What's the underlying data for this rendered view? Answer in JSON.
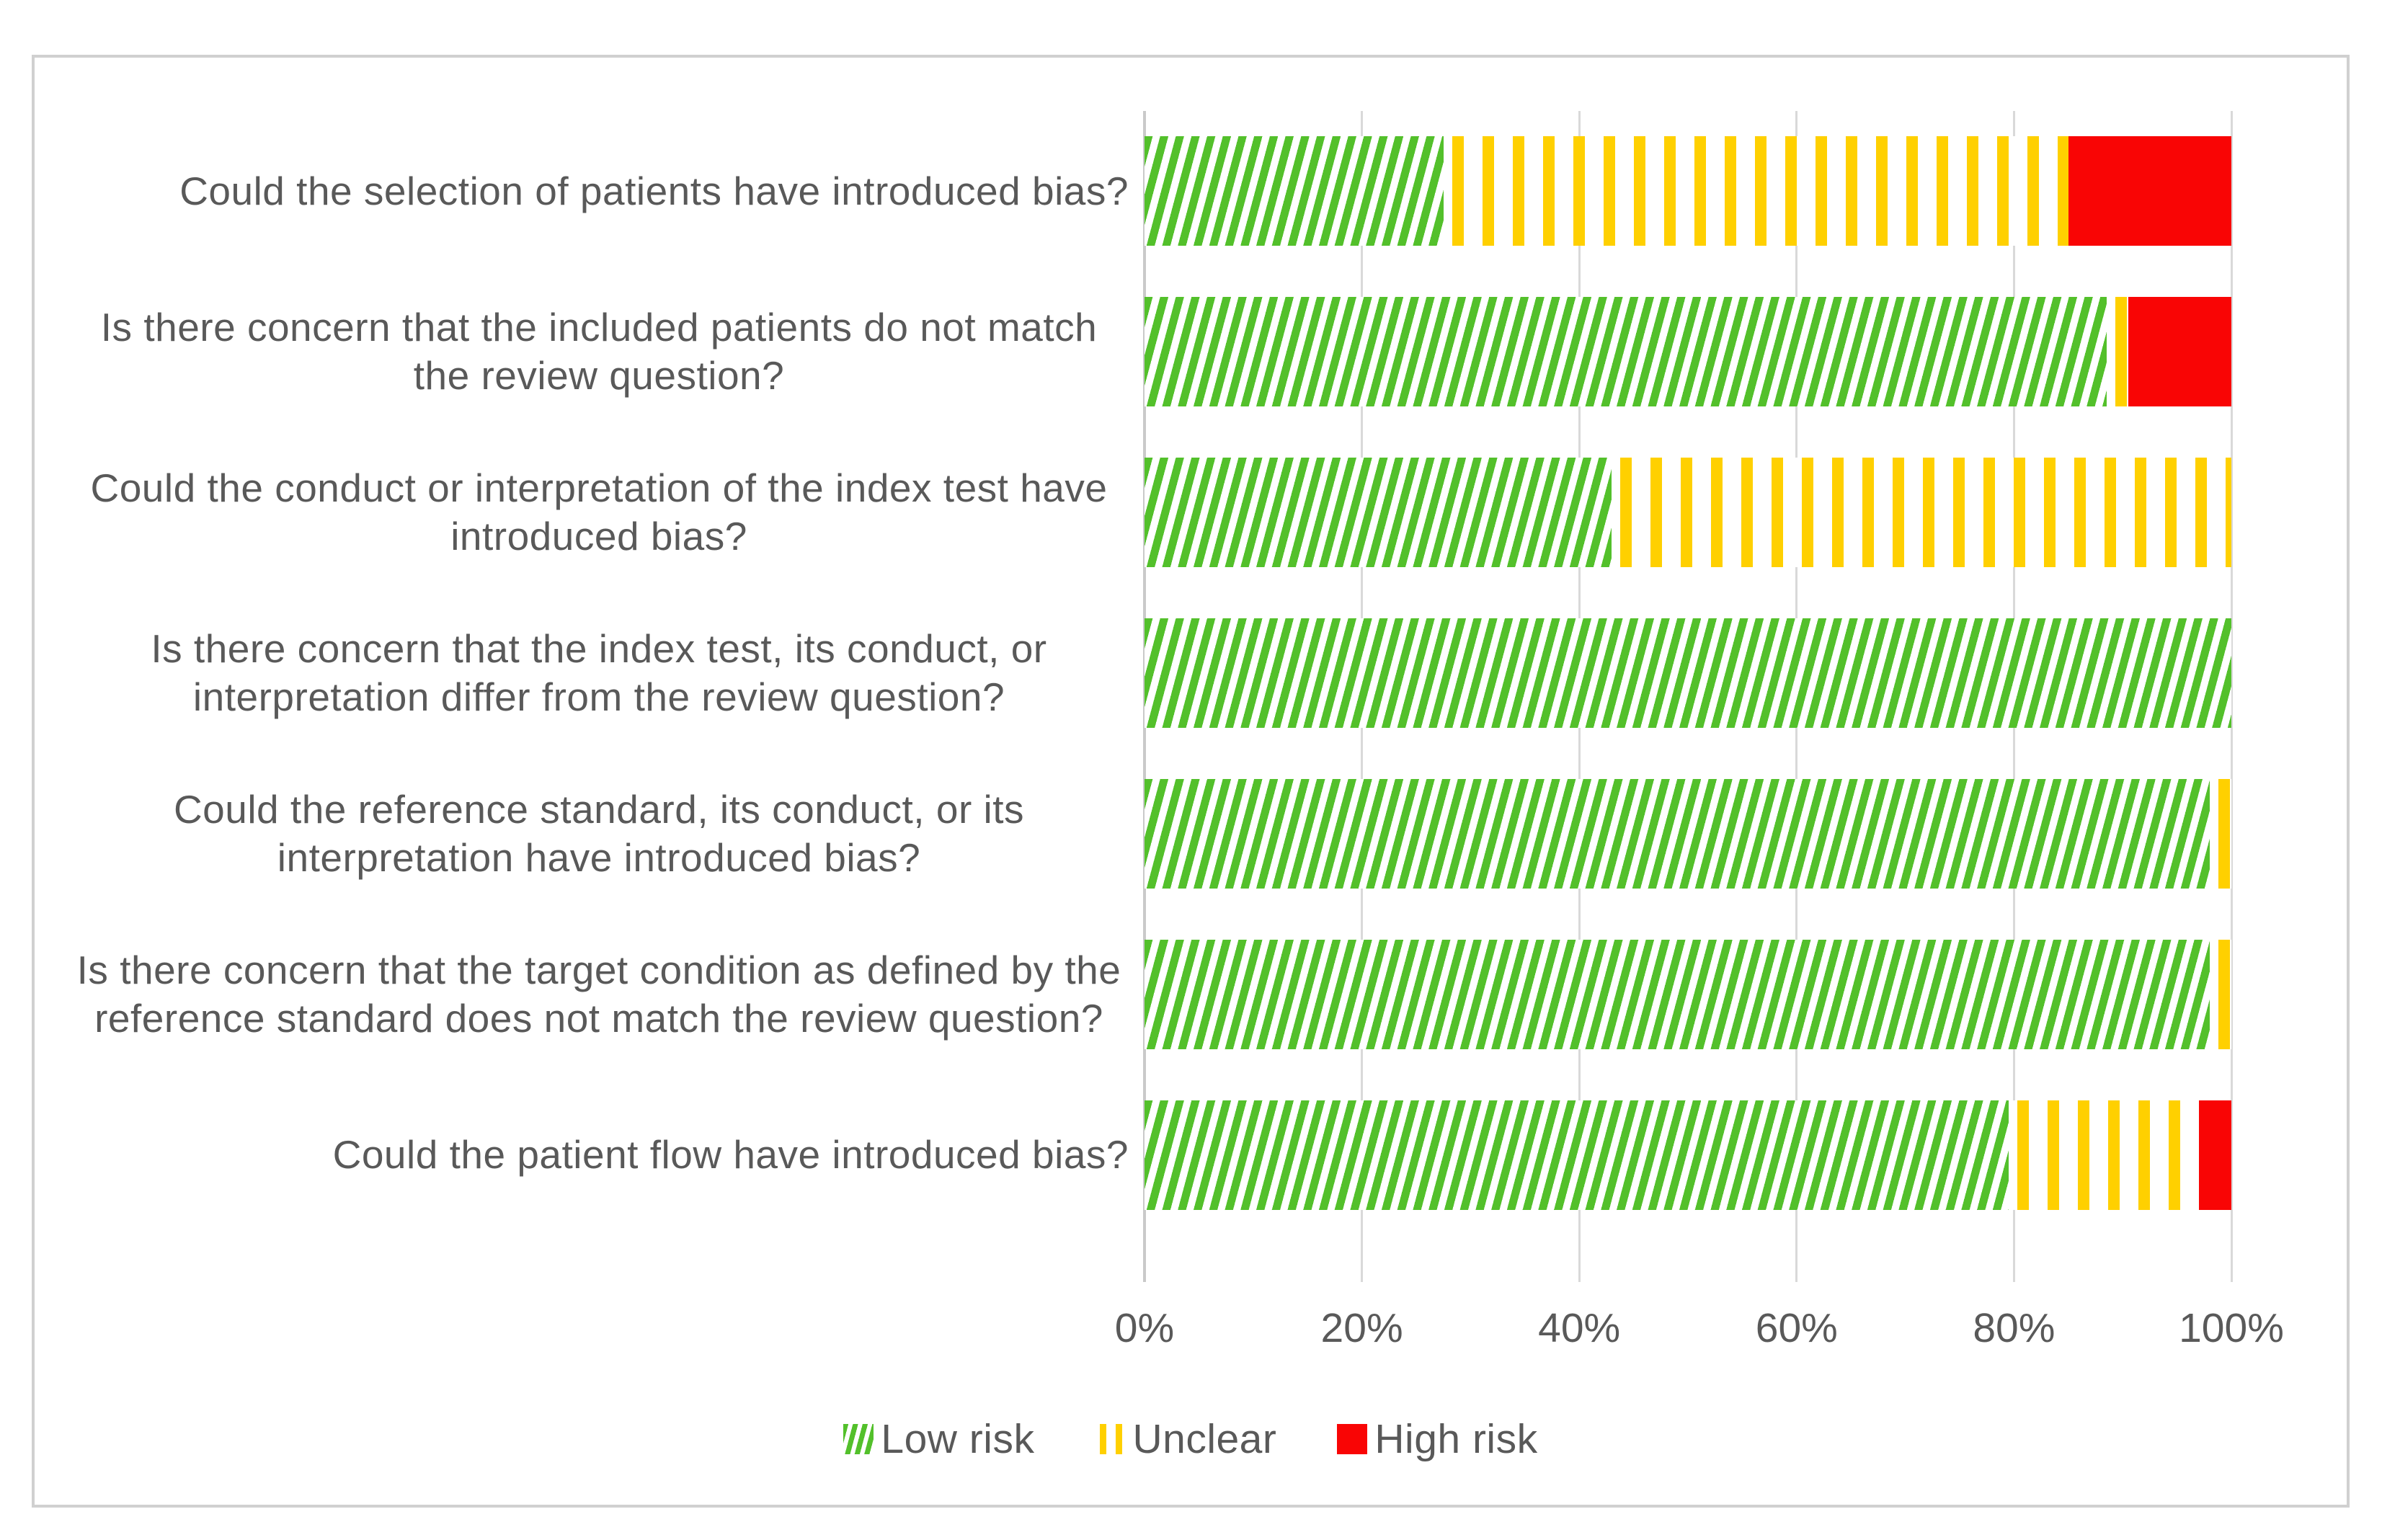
{
  "chart_data": {
    "type": "bar",
    "orientation": "horizontal-stacked",
    "title": "",
    "xlabel": "",
    "ylabel": "",
    "xlim": [
      0,
      100
    ],
    "x_ticks": [
      "0%",
      "20%",
      "40%",
      "60%",
      "80%",
      "100%"
    ],
    "grid": "vertical",
    "legend_position": "bottom",
    "categories": [
      "Could the selection of patients have introduced bias?",
      "Is there concern that the included patients do not match the review question?",
      "Could the conduct or interpretation of the index test have introduced bias?",
      "Is there concern that the index test, its conduct, or interpretation differ from the review question?",
      "Could the reference standard, its conduct, or its interpretation have introduced bias?",
      "Is there concern that the target condition as defined by the reference standard does not match the review question?",
      "Could the patient flow have introduced bias?"
    ],
    "series": [
      {
        "name": "Low risk",
        "key": "low",
        "color": "#53C02B",
        "pattern": "diagonal-hatch",
        "values": [
          27.5,
          88.5,
          43,
          100,
          98,
          98,
          79.5
        ]
      },
      {
        "name": "Unclear",
        "key": "unclear",
        "color": "#FFD000",
        "pattern": "vertical-stripes",
        "values": [
          57.5,
          2,
          57,
          0,
          2,
          2,
          17.5
        ]
      },
      {
        "name": "High risk",
        "key": "high",
        "color": "#F90505",
        "pattern": "solid",
        "values": [
          15,
          9.5,
          0,
          0,
          0,
          0,
          3
        ]
      }
    ]
  },
  "legend": {
    "items": [
      {
        "label": "Low risk",
        "marker": "green-hatch-square"
      },
      {
        "label": "Unclear",
        "marker": "yellow-stripe-square"
      },
      {
        "label": "High risk",
        "marker": "red-solid-square"
      }
    ]
  },
  "colors": {
    "low_risk_green": "#53C02B",
    "unclear_yellow": "#FFD000",
    "high_risk_red": "#F90505",
    "text_gray": "#595959",
    "gridline_gray": "#D9D9D9",
    "frame_border_gray": "#D0D0D0",
    "background": "#FFFFFF"
  }
}
